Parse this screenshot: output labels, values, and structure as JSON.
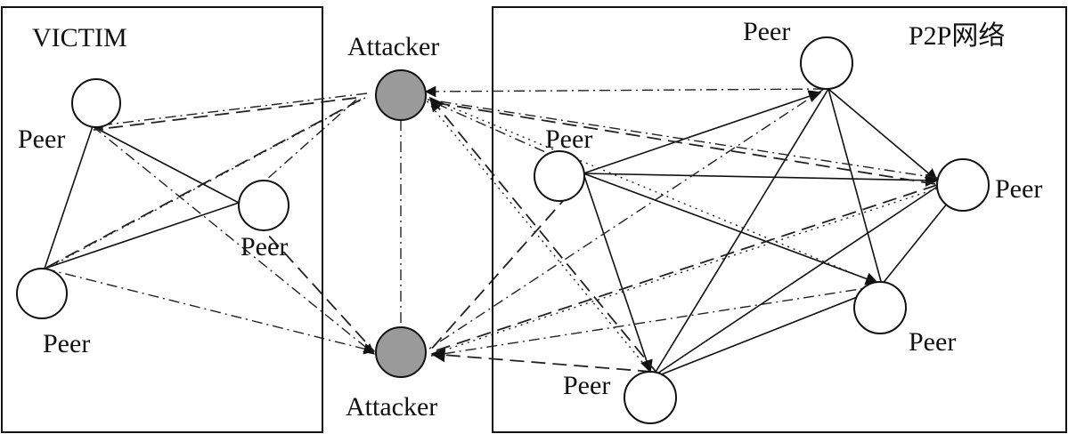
{
  "victim": {
    "title": "VICTIM"
  },
  "p2p": {
    "title": "P2P网络"
  },
  "attackers": {
    "top_label": "Attacker",
    "bottom_label": "Attacker"
  },
  "victim_peers": {
    "top": "Peer",
    "right": "Peer",
    "bottom": "Peer"
  },
  "p2p_peers": {
    "top": "Peer",
    "left": "Peer",
    "right": "Peer",
    "lower_right": "Peer",
    "bottom": "Peer"
  },
  "colors": {
    "attacker_fill": "#9a9a9a",
    "peer_fill": "#ffffff",
    "line": "#111111"
  }
}
